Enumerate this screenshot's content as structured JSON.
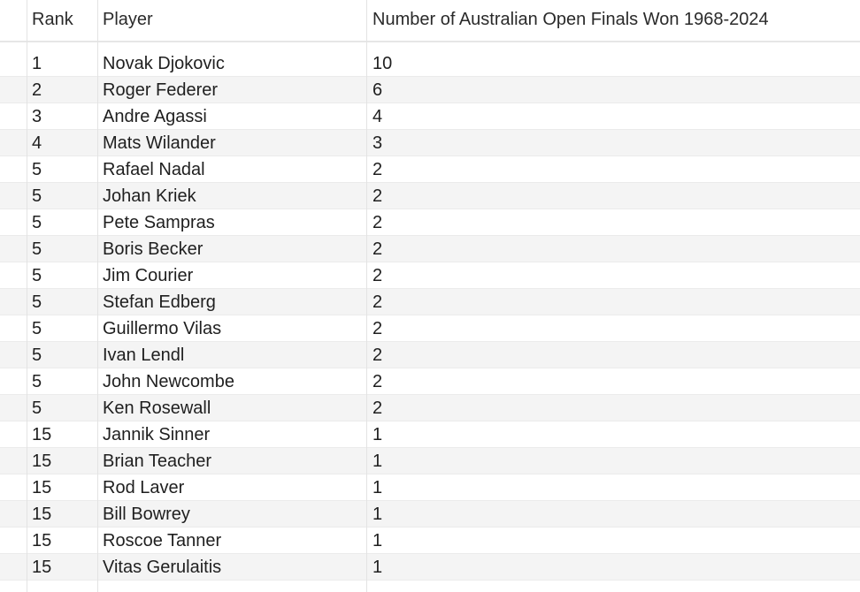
{
  "table": {
    "headers": {
      "rank": "Rank",
      "player": "Player",
      "finals": "Number of Australian Open Finals Won 1968-2024"
    },
    "rows": [
      {
        "rank": "1",
        "player": "Novak Djokovic",
        "finals": "10"
      },
      {
        "rank": "2",
        "player": "Roger Federer",
        "finals": "6"
      },
      {
        "rank": "3",
        "player": "Andre Agassi",
        "finals": "4"
      },
      {
        "rank": "4",
        "player": "Mats Wilander",
        "finals": "3"
      },
      {
        "rank": "5",
        "player": "Rafael Nadal",
        "finals": "2"
      },
      {
        "rank": "5",
        "player": "Johan Kriek",
        "finals": "2"
      },
      {
        "rank": "5",
        "player": "Pete Sampras",
        "finals": "2"
      },
      {
        "rank": "5",
        "player": "Boris Becker",
        "finals": "2"
      },
      {
        "rank": "5",
        "player": "Jim Courier",
        "finals": "2"
      },
      {
        "rank": "5",
        "player": "Stefan Edberg",
        "finals": "2"
      },
      {
        "rank": "5",
        "player": "Guillermo Vilas",
        "finals": "2"
      },
      {
        "rank": "5",
        "player": "Ivan Lendl",
        "finals": "2"
      },
      {
        "rank": "5",
        "player": "John Newcombe",
        "finals": "2"
      },
      {
        "rank": "5",
        "player": "Ken Rosewall",
        "finals": "2"
      },
      {
        "rank": "15",
        "player": "Jannik Sinner",
        "finals": "1"
      },
      {
        "rank": "15",
        "player": "Brian Teacher",
        "finals": "1"
      },
      {
        "rank": "15",
        "player": "Rod Laver",
        "finals": "1"
      },
      {
        "rank": "15",
        "player": "Bill Bowrey",
        "finals": "1"
      },
      {
        "rank": "15",
        "player": "Roscoe Tanner",
        "finals": "1"
      },
      {
        "rank": "15",
        "player": "Vitas Gerulaitis",
        "finals": "1"
      }
    ]
  },
  "colors": {
    "row_stripe": "#f4f4f4",
    "grid_line": "#e3e3e3",
    "text": "#1f1f1f"
  }
}
